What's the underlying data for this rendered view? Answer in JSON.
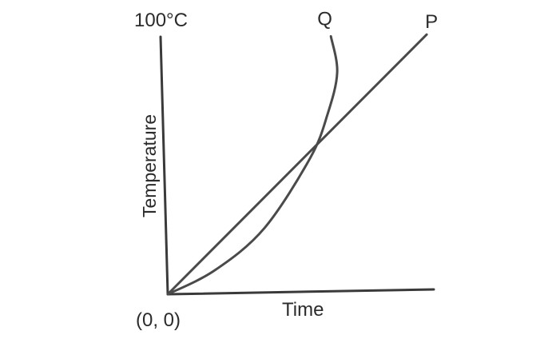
{
  "chart_data": {
    "type": "line",
    "title": "",
    "xlabel": "Time",
    "ylabel": "Temperature",
    "y_max_label": "100°C",
    "origin_label": "(0, 0)",
    "xlim": [
      0,
      1
    ],
    "ylim": [
      0,
      1
    ],
    "grid": false,
    "series": [
      {
        "name": "P",
        "shape": "linear",
        "x": [
          0,
          1
        ],
        "y": [
          0,
          0.99
        ]
      },
      {
        "name": "Q",
        "shape": "curve",
        "x": [
          0,
          0.18,
          0.37,
          0.55,
          0.62,
          0.66,
          0.64
        ],
        "y": [
          0,
          0.09,
          0.25,
          0.52,
          0.69,
          0.85,
          0.99
        ]
      }
    ]
  }
}
